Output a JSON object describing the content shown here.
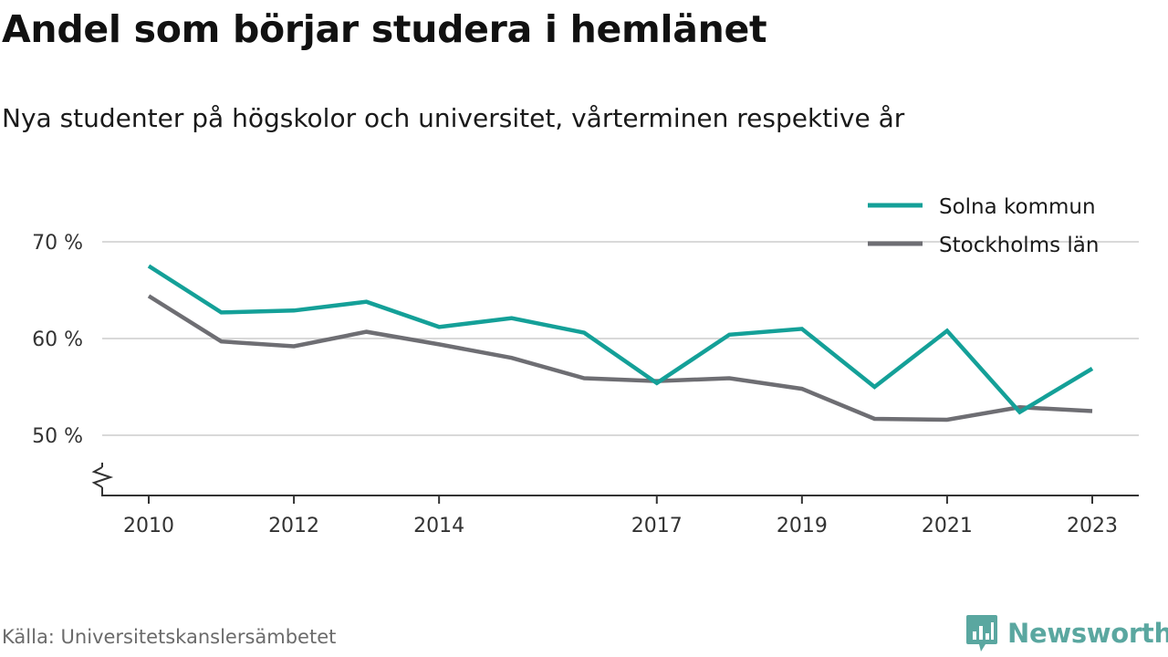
{
  "title": "Andel som börjar studera i hemlänet",
  "subtitle": "Nya studenter på högskolor och universitet, vårterminen respektive år",
  "source": "Källa: Universitetskanslersämbetet",
  "brand": "Newsworthy",
  "colors": {
    "solna": "#14a098",
    "stockholm": "#6e6e73",
    "grid": "#d9d9d9",
    "axis": "#333333",
    "brand": "#5aa7a0"
  },
  "icons": {
    "axis_break": "zigzag-break-icon",
    "logo": "newsworthy-logo-icon"
  },
  "chart_data": {
    "type": "line",
    "title": "Andel som börjar studera i hemlänet",
    "subtitle": "Nya studenter på högskolor och universitet, vårterminen respektive år",
    "x": [
      2010,
      2011,
      2012,
      2013,
      2014,
      2015,
      2016,
      2017,
      2018,
      2019,
      2020,
      2021,
      2022,
      2023
    ],
    "xticks": [
      "2010",
      "2012",
      "2014",
      "2017",
      "2019",
      "2021",
      "2023"
    ],
    "yticks": [
      {
        "value": 50,
        "label": "50 %"
      },
      {
        "value": 60,
        "label": "60 %"
      },
      {
        "value": 70,
        "label": "70 %"
      }
    ],
    "ylim": [
      44,
      70
    ],
    "y_axis_break": true,
    "grid": true,
    "legend_position": "top-right",
    "series": [
      {
        "name": "Solna kommun",
        "color": "#14a098",
        "values": [
          67.5,
          62.7,
          62.9,
          63.8,
          61.2,
          62.1,
          60.6,
          55.4,
          60.4,
          61.0,
          55.0,
          60.8,
          52.4,
          56.9
        ]
      },
      {
        "name": "Stockholms län",
        "color": "#6e6e73",
        "values": [
          64.4,
          59.7,
          59.2,
          60.7,
          59.4,
          58.0,
          55.9,
          55.6,
          55.9,
          54.8,
          51.7,
          51.6,
          52.9,
          52.5
        ]
      }
    ]
  }
}
